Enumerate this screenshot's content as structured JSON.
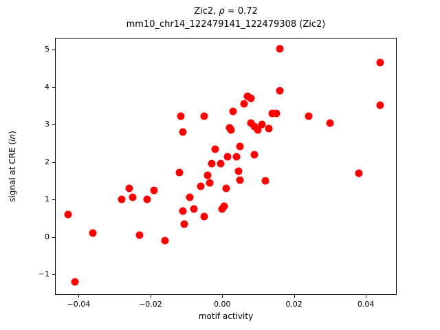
{
  "chart_data": {
    "type": "scatter",
    "title": "Zic2, ρ = 0.72",
    "title_parts": {
      "prefix": "Zic2, ",
      "rho": "ρ",
      "suffix": " = 0.72"
    },
    "subtitle": "mm10_chr14_122479141_122479308 (Zic2)",
    "xlabel": "motif activity",
    "ylabel": "signal at CRE (ln)",
    "ylabel_parts": {
      "prefix": "signal at CRE (",
      "italic": "ln",
      "suffix": ")"
    },
    "marker_color": "#ff0000",
    "xlim": [
      -0.0466,
      0.0486
    ],
    "ylim": [
      -1.55,
      5.32
    ],
    "grid": false,
    "legend": "none",
    "xticks": {
      "values": [
        -0.04,
        -0.02,
        0.0,
        0.02,
        0.04
      ],
      "labels": [
        "−0.04",
        "−0.02",
        "0.00",
        "0.02",
        "0.04"
      ]
    },
    "yticks": {
      "values": [
        -1,
        0,
        1,
        2,
        3,
        4,
        5
      ],
      "labels": [
        "−1",
        "0",
        "1",
        "2",
        "3",
        "4",
        "5"
      ]
    },
    "points": [
      [
        -0.043,
        0.6
      ],
      [
        -0.041,
        -1.2
      ],
      [
        -0.036,
        0.1
      ],
      [
        -0.028,
        1.0
      ],
      [
        -0.026,
        1.3
      ],
      [
        -0.025,
        1.05
      ],
      [
        -0.023,
        0.05
      ],
      [
        -0.021,
        1.0
      ],
      [
        -0.019,
        1.25
      ],
      [
        -0.016,
        -0.1
      ],
      [
        -0.012,
        1.72
      ],
      [
        -0.0115,
        3.22
      ],
      [
        -0.011,
        2.8
      ],
      [
        -0.011,
        0.7
      ],
      [
        -0.0105,
        0.35
      ],
      [
        -0.009,
        1.05
      ],
      [
        -0.008,
        0.75
      ],
      [
        -0.006,
        1.35
      ],
      [
        -0.005,
        3.22
      ],
      [
        -0.005,
        0.55
      ],
      [
        -0.004,
        1.65
      ],
      [
        -0.0035,
        1.45
      ],
      [
        -0.003,
        1.95
      ],
      [
        -0.002,
        2.35
      ],
      [
        -0.0005,
        1.95
      ],
      [
        0.0,
        0.75
      ],
      [
        0.0005,
        0.82
      ],
      [
        0.001,
        1.3
      ],
      [
        0.0015,
        2.15
      ],
      [
        0.002,
        2.92
      ],
      [
        0.0025,
        2.85
      ],
      [
        0.003,
        3.35
      ],
      [
        0.004,
        2.15
      ],
      [
        0.0045,
        1.75
      ],
      [
        0.005,
        2.42
      ],
      [
        0.005,
        1.52
      ],
      [
        0.006,
        3.55
      ],
      [
        0.007,
        3.75
      ],
      [
        0.008,
        3.7
      ],
      [
        0.008,
        3.05
      ],
      [
        0.009,
        2.95
      ],
      [
        0.009,
        2.2
      ],
      [
        0.01,
        2.85
      ],
      [
        0.011,
        3.0
      ],
      [
        0.012,
        1.5
      ],
      [
        0.013,
        2.9
      ],
      [
        0.014,
        3.3
      ],
      [
        0.015,
        3.3
      ],
      [
        0.016,
        5.02
      ],
      [
        0.016,
        3.9
      ],
      [
        0.024,
        3.22
      ],
      [
        0.03,
        3.05
      ],
      [
        0.038,
        1.7
      ],
      [
        0.044,
        4.65
      ],
      [
        0.044,
        3.52
      ]
    ]
  }
}
